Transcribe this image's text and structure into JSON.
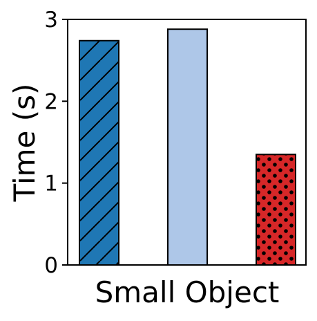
{
  "chart_data": {
    "type": "bar",
    "title": "",
    "xlabel": "Small Object",
    "ylabel": "Time (s)",
    "ylim": [
      0,
      3
    ],
    "yticks": [
      0,
      1,
      2,
      3
    ],
    "grid": false,
    "bars": [
      {
        "value": 2.74,
        "color": "#1f77b4",
        "pattern": "diagonal-hatch"
      },
      {
        "value": 2.88,
        "color": "#aec7e8",
        "pattern": "none"
      },
      {
        "value": 1.35,
        "color": "#d62728",
        "pattern": "dots"
      }
    ]
  }
}
